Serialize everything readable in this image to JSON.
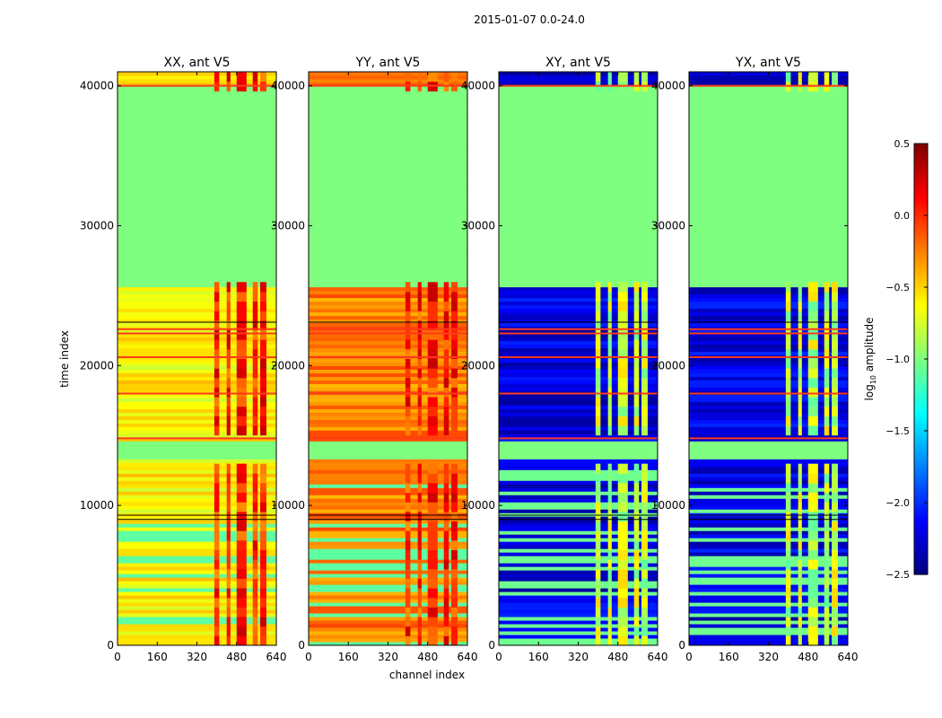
{
  "figure_title": "2015-01-07 0.0-24.0",
  "colors": {
    "flagged": "#7fff7f",
    "redline": "#ff3a1a",
    "blackline": "#000000"
  },
  "chart_data": {
    "type": "heatmap",
    "xlabel": "channel index",
    "ylabel": "time index",
    "x_ticks": [
      0,
      160,
      320,
      480,
      640
    ],
    "y_ticks": [
      0,
      10000,
      20000,
      30000,
      40000
    ],
    "xlim": [
      0,
      640
    ],
    "ylim": [
      0,
      41000
    ],
    "colorbar": {
      "label": "log10 amplitude",
      "label_text": "log",
      "label_sub": "10",
      "label_suffix": " amplitude",
      "range": [
        -2.5,
        0.5
      ],
      "ticks": [
        "0.5",
        "0.0",
        "−0.5",
        "−1.0",
        "−1.5",
        "−2.0",
        "−2.5"
      ],
      "colormap": "jet"
    },
    "panels": [
      {
        "title": "XX, ant V5",
        "style": "auto",
        "base_value": -0.6
      },
      {
        "title": "YY, ant V5",
        "style": "auto",
        "base_value": -0.25
      },
      {
        "title": "XY, ant V5",
        "style": "cross",
        "base_value": -2.2
      },
      {
        "title": "YX, ant V5",
        "style": "cross",
        "base_value": -2.2
      }
    ],
    "flagged_time_ranges": [
      [
        13200,
        14700
      ],
      [
        25700,
        39900
      ]
    ],
    "strong_channels": [
      [
        390,
        410
      ],
      [
        440,
        455
      ],
      [
        480,
        520
      ],
      [
        545,
        565
      ],
      [
        575,
        600
      ]
    ],
    "red_lines_time": [
      14800,
      18000,
      20600,
      22300,
      22600,
      40000
    ],
    "black_lines_time": [
      9000,
      9300,
      23100
    ]
  }
}
